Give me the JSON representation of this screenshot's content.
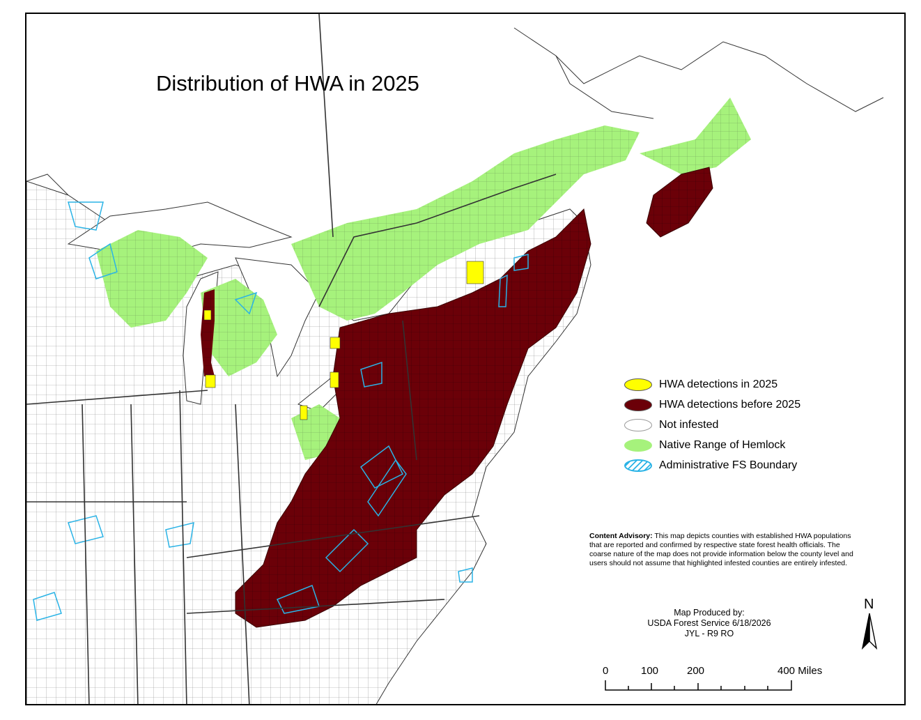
{
  "map": {
    "title": "Distribution of HWA in 2025",
    "colors": {
      "infested_2025": "#ffff00",
      "infested_before_2025": "#6b0008",
      "not_infested": "#ffffff",
      "native_hemlock": "#a6f27c",
      "fs_boundary": "#2ab3e6",
      "county_lines": "#777777",
      "state_lines": "#333333"
    }
  },
  "legend": {
    "items": [
      {
        "label": "HWA detections in 2025"
      },
      {
        "label": "HWA detections before 2025"
      },
      {
        "label": "Not infested"
      },
      {
        "label": "Native Range of Hemlock"
      },
      {
        "label": "Administrative FS Boundary"
      }
    ]
  },
  "advisory": {
    "heading": "Content Advisory:",
    "text": " This map depicts counties with established HWA populations that are reported and confirmed by respective state forest health officials. The coarse nature of the map does not provide information below the county level and users should not assume that highlighted infested counties are entirely infested."
  },
  "credits": {
    "line1": "Map Produced by:",
    "line2": "USDA Forest Service  6/18/2026",
    "line3": "JYL - R9 RO"
  },
  "north_arrow": {
    "label": "N"
  },
  "scale": {
    "labels": [
      "0",
      "100",
      "200",
      "400 Miles"
    ]
  }
}
